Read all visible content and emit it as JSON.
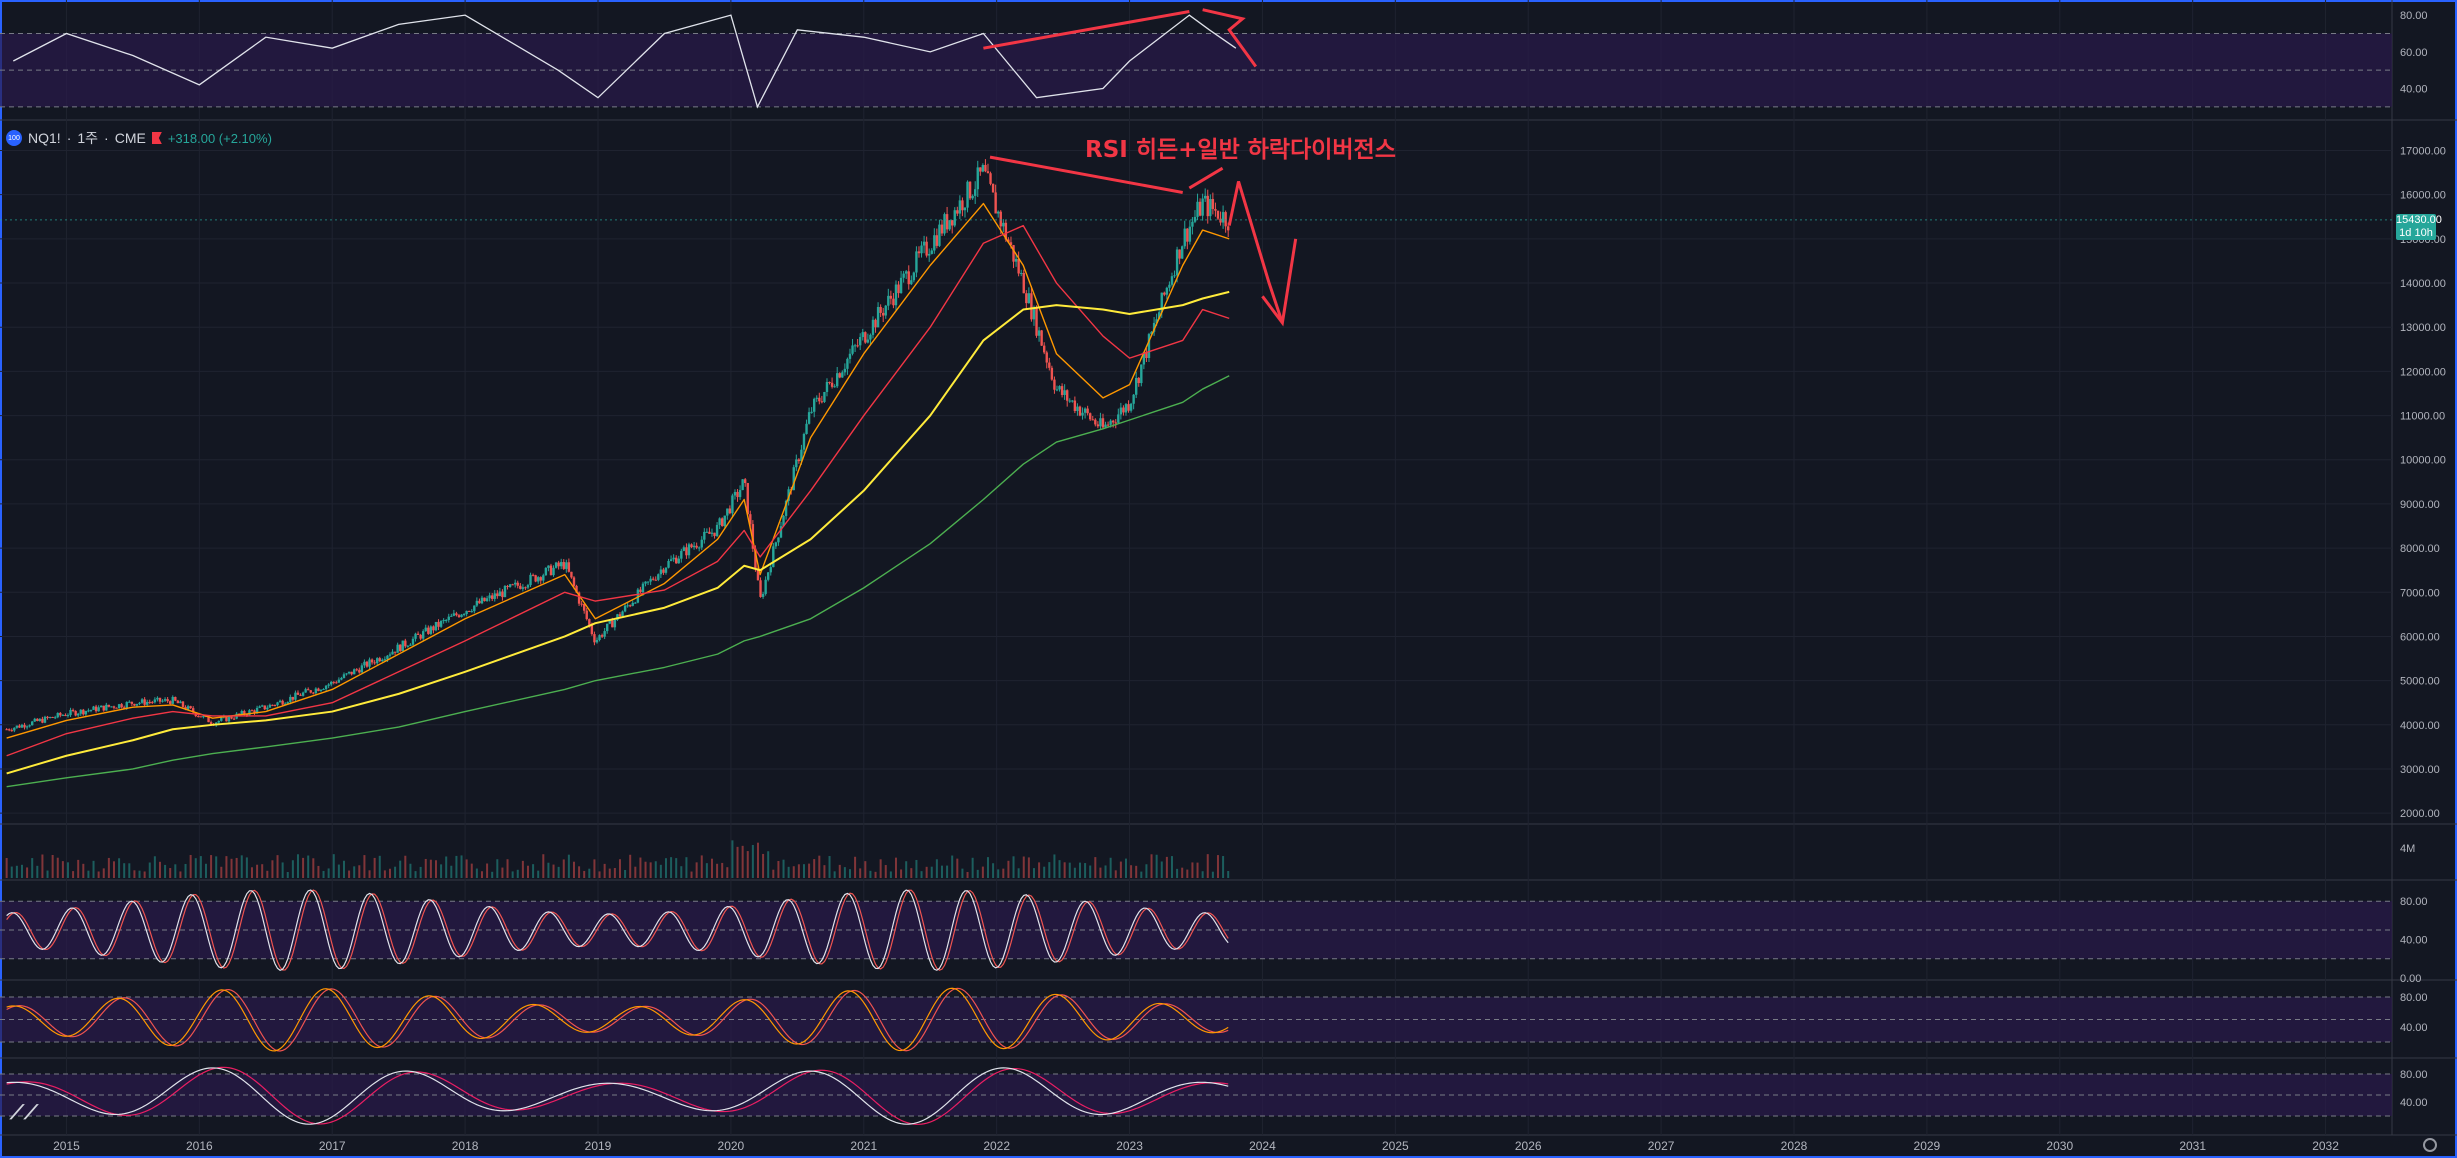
{
  "symbol": {
    "name": "NQ1!",
    "interval": "1주",
    "exchange": "CME",
    "change": "+318.00 (+2.10%)",
    "logo_text": "100"
  },
  "annotation": "RSI 히든+일반 하락다이버전스",
  "price_tag": {
    "value": "15430.00",
    "countdown": "1d 10h"
  },
  "volume_label": "4M",
  "colors": {
    "background": "#131722",
    "up": "#26a69a",
    "down": "#ef5350",
    "ma_orange": "#ff9800",
    "ma_red": "#f23645",
    "ma_yellow": "#ffeb3b",
    "ma_green": "#4caf50",
    "panel_band": "#2a1a4a",
    "annotation": "#f23645"
  },
  "icons": [
    "tradingview-logo-icon",
    "settings-gear-icon",
    "flag-icon"
  ],
  "chart_data": [
    {
      "type": "line",
      "name": "rsi-panel",
      "y_ticks": [
        "80.00",
        "60.00",
        "40.00"
      ],
      "ylim": [
        25,
        85
      ],
      "x": [
        2014.6,
        2015.0,
        2015.5,
        2016.0,
        2016.5,
        2017.0,
        2017.5,
        2018.0,
        2018.7,
        2019.0,
        2019.5,
        2020.0,
        2020.2,
        2020.5,
        2021.0,
        2021.5,
        2021.9,
        2022.3,
        2022.8,
        2023.0,
        2023.45,
        2023.6,
        2023.8
      ],
      "series": [
        {
          "values": [
            55,
            70,
            58,
            42,
            68,
            62,
            75,
            80,
            50,
            35,
            70,
            80,
            30,
            72,
            68,
            60,
            70,
            35,
            40,
            55,
            80,
            72,
            62
          ]
        }
      ]
    },
    {
      "type": "line",
      "name": "price-panel",
      "y_ticks": [
        "17000.00",
        "16000.00",
        "15000.00",
        "14000.00",
        "13000.00",
        "12000.00",
        "11000.00",
        "10000.00",
        "9000.00",
        "8000.00",
        "7000.00",
        "6000.00",
        "5000.00",
        "4000.00",
        "3000.00",
        "2000.00"
      ],
      "ylim": [
        1800,
        17600
      ],
      "x_ticks": [
        "2015",
        "2016",
        "2017",
        "2018",
        "2019",
        "2020",
        "2021",
        "2022",
        "2023",
        "2024",
        "2025",
        "2026",
        "2027",
        "2028",
        "2029",
        "2030",
        "2031",
        "2032"
      ],
      "xlim": [
        2014.5,
        2032.5
      ],
      "x": [
        2014.55,
        2015.0,
        2015.5,
        2015.8,
        2016.1,
        2016.5,
        2017.0,
        2017.5,
        2018.0,
        2018.75,
        2018.98,
        2019.5,
        2019.9,
        2020.1,
        2020.22,
        2020.6,
        2021.0,
        2021.5,
        2021.9,
        2022.2,
        2022.45,
        2022.8,
        2023.0,
        2023.4,
        2023.55,
        2023.75
      ],
      "series": [
        {
          "values": [
            3900,
            4250,
            4500,
            4550,
            4050,
            4400,
            4950,
            5750,
            6600,
            7650,
            5900,
            7600,
            8450,
            9500,
            6800,
            11100,
            12800,
            14900,
            16500,
            14000,
            11600,
            10700,
            11300,
            15000,
            15800,
            15430
          ]
        },
        {
          "values": [
            3700,
            4100,
            4400,
            4450,
            4150,
            4300,
            4800,
            5600,
            6400,
            7400,
            6400,
            7200,
            8200,
            9100,
            7400,
            10500,
            12400,
            14400,
            15800,
            14400,
            12400,
            11400,
            11700,
            14400,
            15200,
            15000
          ]
        },
        {
          "values": [
            3300,
            3800,
            4150,
            4300,
            4200,
            4200,
            4500,
            5200,
            5900,
            7000,
            6800,
            7050,
            7700,
            8400,
            7800,
            9300,
            11000,
            13000,
            14900,
            15300,
            14000,
            12800,
            12300,
            12700,
            13400,
            13200
          ]
        },
        {
          "values": [
            2900,
            3300,
            3650,
            3900,
            4000,
            4100,
            4300,
            4700,
            5200,
            6000,
            6300,
            6650,
            7100,
            7600,
            7500,
            8200,
            9300,
            11000,
            12700,
            13400,
            13500,
            13400,
            13300,
            13500,
            13650,
            13800
          ]
        },
        {
          "values": [
            2600,
            2800,
            3000,
            3200,
            3350,
            3500,
            3700,
            3950,
            4300,
            4800,
            5000,
            5300,
            5600,
            5900,
            6000,
            6400,
            7100,
            8100,
            9100,
            9900,
            10400,
            10700,
            10900,
            11300,
            11600,
            11900
          ]
        }
      ]
    },
    {
      "type": "bar",
      "name": "volume-panel",
      "y_ticks": [
        "4M"
      ]
    },
    {
      "type": "line",
      "name": "stoch-panel-1",
      "y_ticks": [
        "80.00",
        "40.00",
        "0.00"
      ],
      "ylim": [
        0,
        100
      ]
    },
    {
      "type": "line",
      "name": "stoch-panel-2",
      "y_ticks": [
        "80.00",
        "40.00"
      ],
      "ylim": [
        0,
        100
      ]
    },
    {
      "type": "line",
      "name": "stoch-panel-3",
      "y_ticks": [
        "80.00",
        "40.00"
      ],
      "ylim": [
        0,
        100
      ]
    }
  ]
}
